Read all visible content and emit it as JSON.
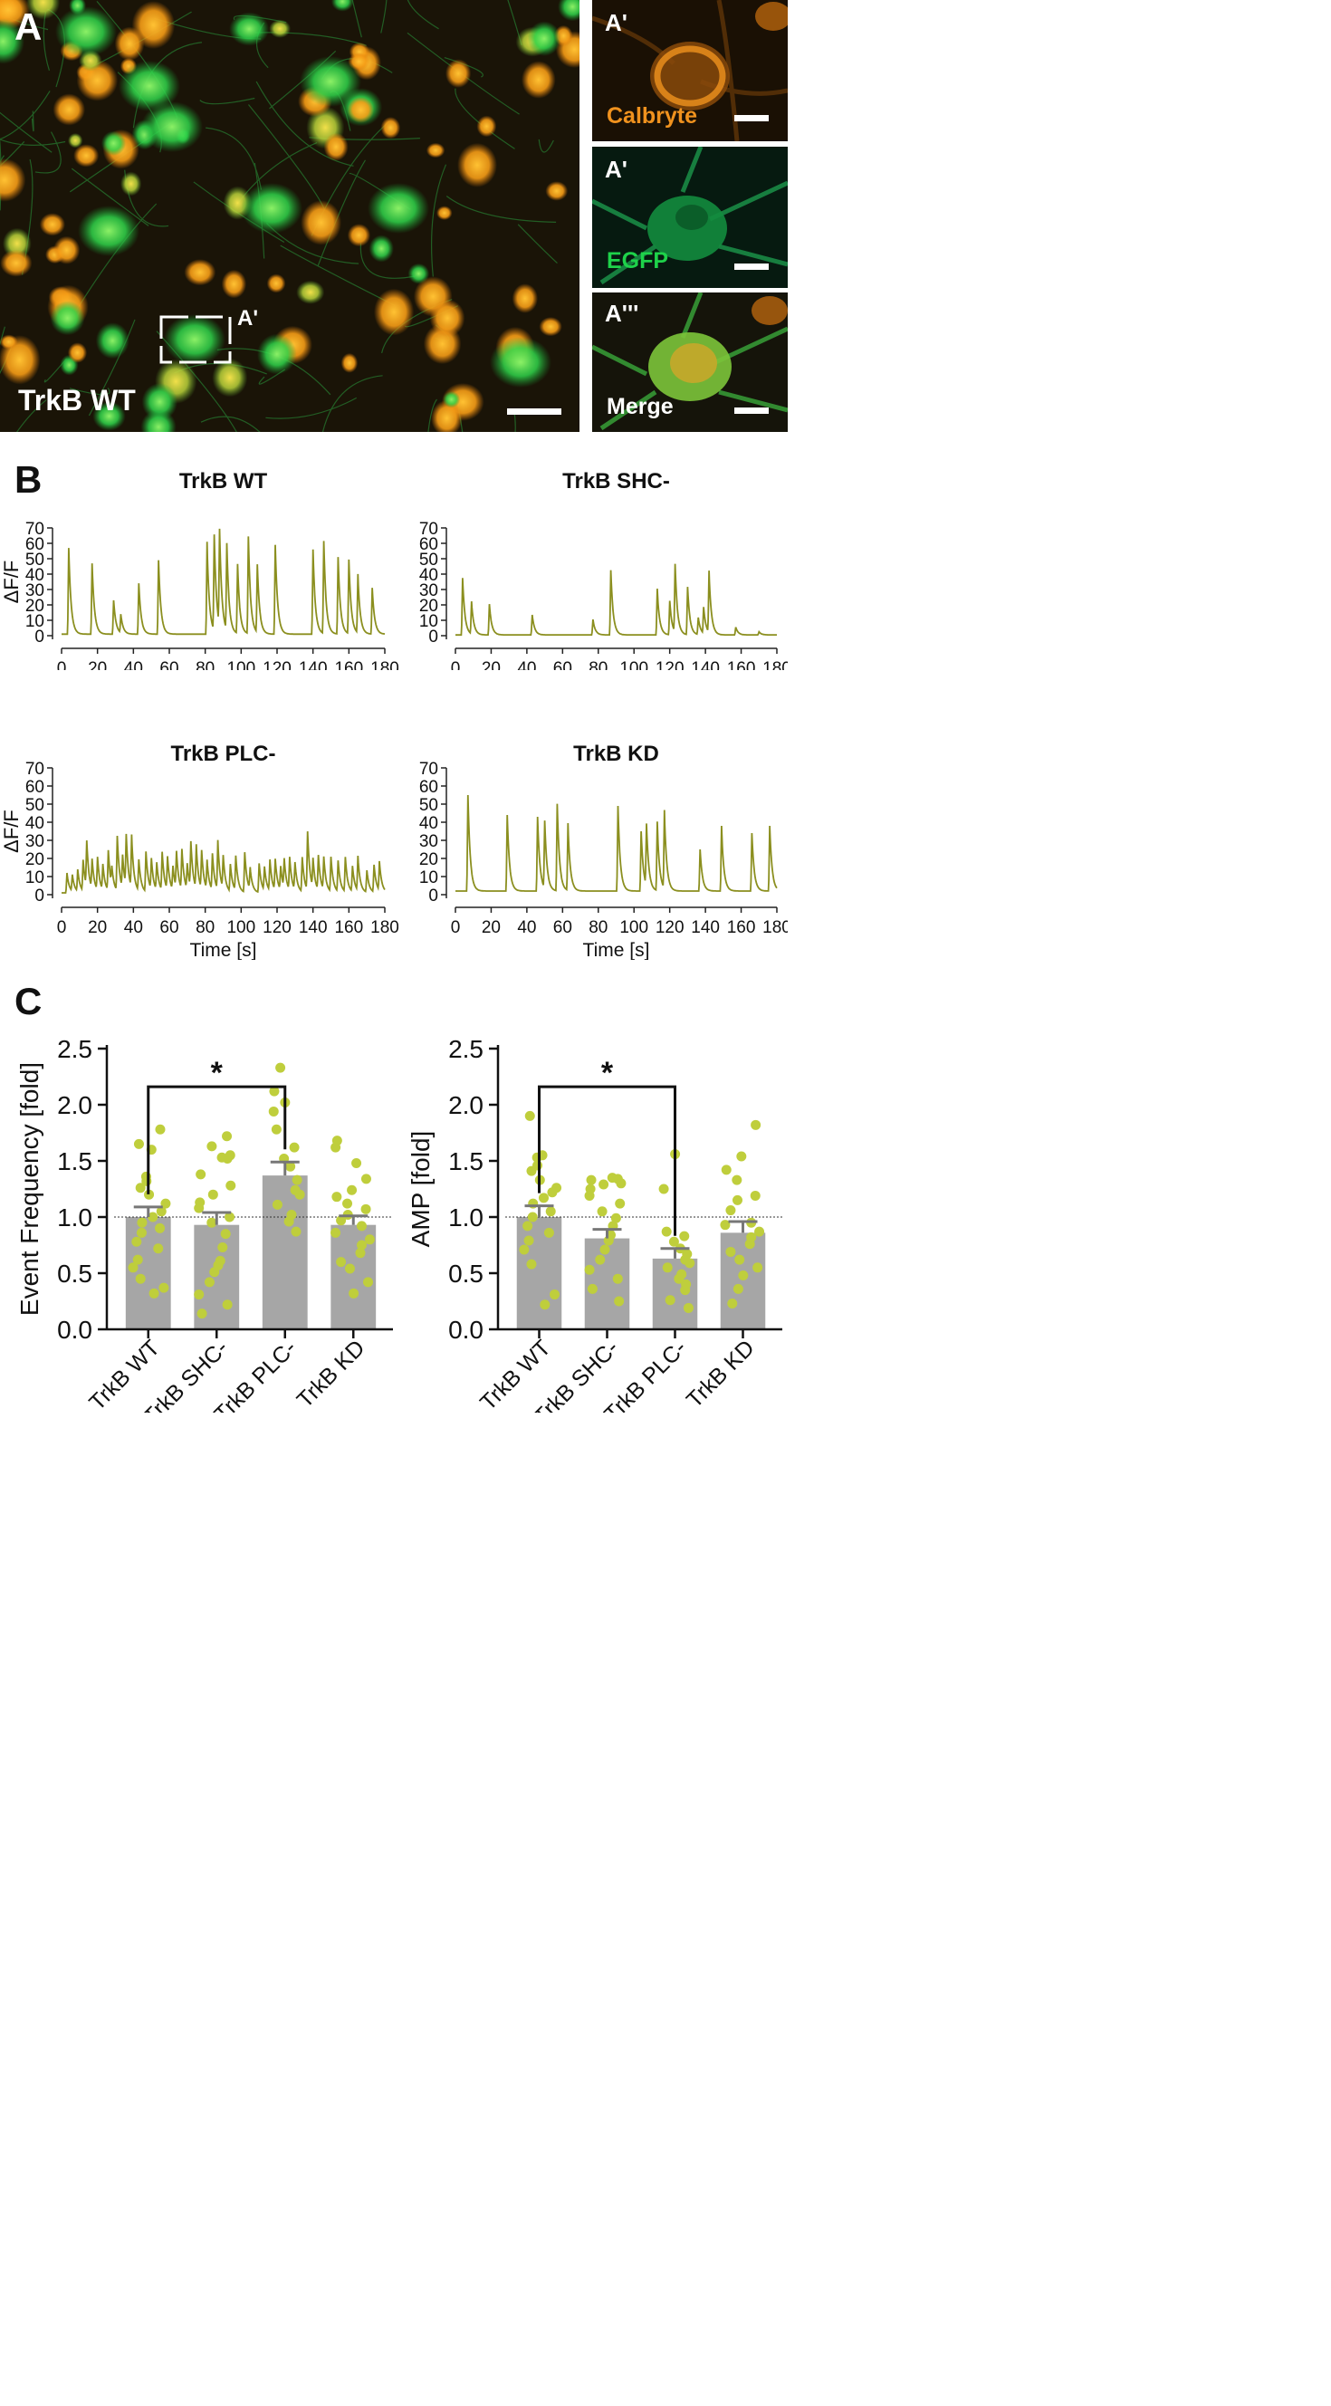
{
  "panel_a": {
    "letter": "A",
    "condition_label": "TrkB WT",
    "inset_label": "A'",
    "insets": [
      {
        "label": "A'",
        "channel": "Calbryte",
        "color": "#f0921e"
      },
      {
        "label": "A'",
        "channel": "EGFP",
        "color": "#1ed24a"
      },
      {
        "label": "A'''",
        "channel": "Merge",
        "color": "#ffffff"
      }
    ],
    "colors": {
      "calcium": "#f5a623",
      "egfp": "#2ee04a",
      "background": "#140f06"
    }
  },
  "panel_b": {
    "letter": "B"
  },
  "panel_c": {
    "letter": "C"
  },
  "chart_data": [
    {
      "type": "line",
      "title": "TrkB WT",
      "xlabel": "",
      "ylabel": "ΔF/F",
      "xlim": [
        0,
        180
      ],
      "ylim": [
        0,
        70
      ],
      "xticks": [
        0,
        20,
        40,
        60,
        80,
        100,
        120,
        140,
        160,
        180
      ],
      "yticks": [
        0,
        10,
        20,
        30,
        40,
        50,
        60,
        70
      ],
      "color": "#8b8f1f",
      "baseline": 1,
      "peaks": [
        [
          4,
          56
        ],
        [
          17,
          46
        ],
        [
          29,
          22
        ],
        [
          33,
          12
        ],
        [
          43,
          33
        ],
        [
          54,
          48
        ],
        [
          81,
          60
        ],
        [
          85,
          62
        ],
        [
          88,
          62
        ],
        [
          92,
          56
        ],
        [
          98,
          45
        ],
        [
          104,
          63
        ],
        [
          109,
          44
        ],
        [
          119,
          58
        ],
        [
          140,
          55
        ],
        [
          146,
          60
        ],
        [
          154,
          50
        ],
        [
          160,
          48
        ],
        [
          165,
          38
        ],
        [
          173,
          30
        ]
      ]
    },
    {
      "type": "line",
      "title": "TrkB SHC-",
      "xlabel": "",
      "ylabel": "",
      "xlim": [
        0,
        180
      ],
      "ylim": [
        0,
        70
      ],
      "xticks": [
        0,
        20,
        40,
        60,
        80,
        100,
        120,
        140,
        160,
        180
      ],
      "yticks": [
        0,
        10,
        20,
        30,
        40,
        50,
        60,
        70
      ],
      "color": "#8b8f1f",
      "baseline": 0.5,
      "peaks": [
        [
          4,
          37
        ],
        [
          9,
          21
        ],
        [
          19,
          20
        ],
        [
          43,
          13
        ],
        [
          77,
          10
        ],
        [
          87,
          42
        ],
        [
          113,
          30
        ],
        [
          120,
          22
        ],
        [
          123,
          44
        ],
        [
          130,
          31
        ],
        [
          136,
          11
        ],
        [
          139,
          17
        ],
        [
          142,
          40
        ],
        [
          157,
          5
        ],
        [
          170,
          2
        ]
      ]
    },
    {
      "type": "line",
      "title": "TrkB PLC-",
      "xlabel": "Time [s]",
      "ylabel": "ΔF/F",
      "xlim": [
        0,
        180
      ],
      "ylim": [
        0,
        70
      ],
      "xticks": [
        0,
        20,
        40,
        60,
        80,
        100,
        120,
        140,
        160,
        180
      ],
      "yticks": [
        0,
        10,
        20,
        30,
        40,
        50,
        60,
        70
      ],
      "color": "#8b8f1f",
      "baseline": 1,
      "peaks": [
        [
          3,
          11
        ],
        [
          6,
          9
        ],
        [
          9,
          12
        ],
        [
          12,
          17
        ],
        [
          14,
          25
        ],
        [
          17,
          16
        ],
        [
          20,
          18
        ],
        [
          23,
          14
        ],
        [
          26,
          22
        ],
        [
          28,
          10
        ],
        [
          31,
          30
        ],
        [
          34,
          18
        ],
        [
          36,
          28
        ],
        [
          39,
          29
        ],
        [
          43,
          17
        ],
        [
          47,
          22
        ],
        [
          50,
          17
        ],
        [
          53,
          15
        ],
        [
          56,
          21
        ],
        [
          59,
          18
        ],
        [
          62,
          13
        ],
        [
          64,
          20
        ],
        [
          67,
          22
        ],
        [
          70,
          14
        ],
        [
          72,
          25
        ],
        [
          75,
          24
        ],
        [
          78,
          21
        ],
        [
          81,
          16
        ],
        [
          84,
          20
        ],
        [
          87,
          27
        ],
        [
          90,
          18
        ],
        [
          94,
          15
        ],
        [
          97,
          19
        ],
        [
          102,
          22
        ],
        [
          105,
          12
        ],
        [
          110,
          16
        ],
        [
          113,
          13
        ],
        [
          116,
          17
        ],
        [
          119,
          17
        ],
        [
          122,
          13
        ],
        [
          124,
          16
        ],
        [
          127,
          18
        ],
        [
          130,
          15
        ],
        [
          134,
          19
        ],
        [
          137,
          32
        ],
        [
          140,
          16
        ],
        [
          143,
          19
        ],
        [
          146,
          18
        ],
        [
          150,
          19
        ],
        [
          154,
          17
        ],
        [
          158,
          19
        ],
        [
          162,
          14
        ],
        [
          165,
          19
        ],
        [
          170,
          12
        ],
        [
          174,
          15
        ],
        [
          177,
          16
        ]
      ]
    },
    {
      "type": "line",
      "title": "TrkB KD",
      "xlabel": "Time [s]",
      "ylabel": "",
      "xlim": [
        0,
        180
      ],
      "ylim": [
        0,
        70
      ],
      "xticks": [
        0,
        20,
        40,
        60,
        80,
        100,
        120,
        140,
        160,
        180
      ],
      "yticks": [
        0,
        10,
        20,
        30,
        40,
        50,
        60,
        70
      ],
      "color": "#8b8f1f",
      "baseline": 2,
      "peaks": [
        [
          7,
          53
        ],
        [
          29,
          42
        ],
        [
          46,
          41
        ],
        [
          50,
          37
        ],
        [
          57,
          48
        ],
        [
          63,
          37
        ],
        [
          91,
          47
        ],
        [
          104,
          33
        ],
        [
          107,
          34
        ],
        [
          113,
          38
        ],
        [
          117,
          43
        ],
        [
          137,
          23
        ],
        [
          149,
          36
        ],
        [
          166,
          32
        ],
        [
          176,
          36
        ]
      ]
    },
    {
      "type": "bar",
      "title": "",
      "xlabel": "",
      "ylabel": "Event Frequency [fold]",
      "ylim": [
        0,
        2.5
      ],
      "yticks": [
        "0.0",
        "0.5",
        "1.0",
        "1.5",
        "2.0",
        "2.5"
      ],
      "categories": [
        "TrkB WT",
        "TrkB SHC-",
        "TrkB PLC-",
        "TrkB KD"
      ],
      "values": [
        1.0,
        0.93,
        1.37,
        0.93
      ],
      "errors": [
        0.09,
        0.11,
        0.12,
        0.08
      ],
      "reference_line": 1.0,
      "significance": {
        "from": 0,
        "to": 2,
        "label": "*",
        "y": 2.16
      },
      "bar_color": "#a6a6a6",
      "point_color": "#bfce3c",
      "points": [
        [
          0.32,
          0.37,
          0.45,
          0.55,
          0.62,
          0.72,
          0.78,
          0.86,
          0.9,
          0.95,
          1.0,
          1.05,
          1.12,
          1.2,
          1.26,
          1.32,
          1.36,
          1.6,
          1.65,
          1.78
        ],
        [
          0.14,
          0.22,
          0.31,
          0.42,
          0.51,
          0.57,
          0.61,
          0.73,
          0.85,
          0.95,
          1.0,
          1.08,
          1.13,
          1.2,
          1.28,
          1.38,
          1.52,
          1.53,
          1.55,
          1.63,
          1.72
        ],
        [
          0.87,
          0.96,
          1.02,
          1.11,
          1.2,
          1.24,
          1.33,
          1.45,
          1.52,
          1.62,
          1.78,
          1.94,
          2.02,
          2.12,
          2.33
        ],
        [
          0.32,
          0.42,
          0.54,
          0.6,
          0.68,
          0.75,
          0.8,
          0.86,
          0.92,
          0.97,
          1.02,
          1.07,
          1.12,
          1.18,
          1.24,
          1.34,
          1.48,
          1.62,
          1.68
        ]
      ]
    },
    {
      "type": "bar",
      "title": "",
      "xlabel": "",
      "ylabel": "AMP [fold]",
      "ylim": [
        0,
        2.5
      ],
      "yticks": [
        "0.0",
        "0.5",
        "1.0",
        "1.5",
        "2.0",
        "2.5"
      ],
      "categories": [
        "TrkB WT",
        "TrkB SHC-",
        "TrkB PLC-",
        "TrkB KD"
      ],
      "values": [
        1.0,
        0.81,
        0.63,
        0.86
      ],
      "errors": [
        0.1,
        0.08,
        0.09,
        0.1
      ],
      "reference_line": 1.0,
      "significance": {
        "from": 0,
        "to": 2,
        "label": "*",
        "y": 2.16
      },
      "bar_color": "#a6a6a6",
      "point_color": "#bfce3c",
      "points": [
        [
          0.22,
          0.31,
          0.58,
          0.71,
          0.79,
          0.86,
          0.92,
          1.0,
          1.05,
          1.12,
          1.17,
          1.22,
          1.26,
          1.33,
          1.41,
          1.46,
          1.53,
          1.55,
          1.9
        ],
        [
          0.25,
          0.36,
          0.45,
          0.53,
          0.62,
          0.71,
          0.79,
          0.84,
          0.92,
          0.99,
          1.05,
          1.12,
          1.19,
          1.25,
          1.29,
          1.3,
          1.33,
          1.34,
          1.35
        ],
        [
          0.19,
          0.26,
          0.35,
          0.4,
          0.45,
          0.49,
          0.55,
          0.59,
          0.62,
          0.67,
          0.72,
          0.78,
          0.83,
          0.87,
          1.25,
          1.56
        ],
        [
          0.23,
          0.36,
          0.48,
          0.55,
          0.62,
          0.69,
          0.76,
          0.82,
          0.87,
          0.93,
          0.95,
          1.06,
          1.15,
          1.19,
          1.33,
          1.42,
          1.54,
          1.82
        ]
      ]
    }
  ]
}
